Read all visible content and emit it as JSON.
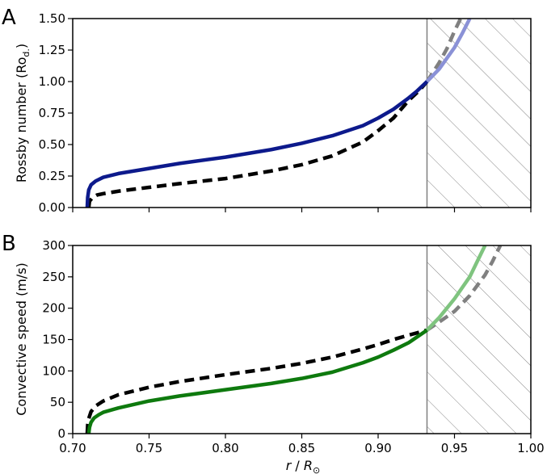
{
  "chart_data": [
    {
      "type": "line",
      "panel_label": "A",
      "xlabel": "",
      "ylabel": "Rossby number (Ro",
      "ylabel_sub": "d.",
      "ylabel_tail": ")",
      "xlim": [
        0.7,
        1.0
      ],
      "ylim": [
        0.0,
        1.5
      ],
      "x_ticks": [
        "0.70",
        "0.75",
        "0.80",
        "0.85",
        "0.90",
        "0.95",
        "1.00"
      ],
      "y_ticks": [
        "0.00",
        "0.25",
        "0.50",
        "0.75",
        "1.00",
        "1.25",
        "1.50"
      ],
      "x_tick_values": [
        0.7,
        0.75,
        0.8,
        0.85,
        0.9,
        0.95,
        1.0
      ],
      "y_tick_values": [
        0.0,
        0.25,
        0.5,
        0.75,
        1.0,
        1.25,
        1.5
      ],
      "hatched_region": [
        0.932,
        1.0
      ],
      "x_tick_labels_visible": false,
      "series": [
        {
          "style": "solid",
          "color": "#0d1a8c",
          "faded_color": "#8a91d6",
          "x": [
            0.7095,
            0.7098,
            0.7105,
            0.712,
            0.715,
            0.72,
            0.73,
            0.75,
            0.77,
            0.8,
            0.83,
            0.85,
            0.87,
            0.89,
            0.9,
            0.91,
            0.92,
            0.925,
            0.932,
            0.94,
            0.95,
            0.955,
            0.96
          ],
          "y": [
            0.0,
            0.08,
            0.14,
            0.18,
            0.21,
            0.24,
            0.27,
            0.31,
            0.35,
            0.4,
            0.46,
            0.51,
            0.57,
            0.65,
            0.71,
            0.78,
            0.87,
            0.92,
            1.0,
            1.1,
            1.27,
            1.38,
            1.5
          ]
        },
        {
          "style": "dashed",
          "color": "#000000",
          "faded_color": "#808080",
          "x": [
            0.7105,
            0.711,
            0.713,
            0.716,
            0.72,
            0.73,
            0.75,
            0.77,
            0.8,
            0.83,
            0.85,
            0.87,
            0.89,
            0.9,
            0.91,
            0.92,
            0.927,
            0.932,
            0.94,
            0.945,
            0.95,
            0.954
          ],
          "y": [
            0.0,
            0.05,
            0.08,
            0.1,
            0.11,
            0.13,
            0.16,
            0.19,
            0.23,
            0.29,
            0.34,
            0.41,
            0.52,
            0.61,
            0.71,
            0.85,
            0.93,
            1.0,
            1.15,
            1.26,
            1.4,
            1.5
          ]
        }
      ]
    },
    {
      "type": "line",
      "panel_label": "B",
      "xlabel_var": "r",
      "xlabel_sep": " / ",
      "xlabel_den": "R",
      "xlabel_sub": "⊙",
      "ylabel": "Convective speed (m/s)",
      "xlim": [
        0.7,
        1.0
      ],
      "ylim": [
        0,
        300
      ],
      "x_ticks": [
        "0.70",
        "0.75",
        "0.80",
        "0.85",
        "0.90",
        "0.95",
        "1.00"
      ],
      "y_ticks": [
        "0",
        "50",
        "100",
        "150",
        "200",
        "250",
        "300"
      ],
      "x_tick_values": [
        0.7,
        0.75,
        0.8,
        0.85,
        0.9,
        0.95,
        1.0
      ],
      "y_tick_values": [
        0,
        50,
        100,
        150,
        200,
        250,
        300
      ],
      "hatched_region": [
        0.932,
        1.0
      ],
      "x_tick_labels_visible": true,
      "series": [
        {
          "style": "solid",
          "color": "#0e7a0e",
          "faded_color": "#7fc47f",
          "x": [
            0.7105,
            0.711,
            0.712,
            0.714,
            0.717,
            0.72,
            0.73,
            0.75,
            0.77,
            0.8,
            0.83,
            0.85,
            0.87,
            0.89,
            0.9,
            0.91,
            0.92,
            0.932,
            0.94,
            0.95,
            0.96,
            0.965,
            0.97
          ],
          "y": [
            0,
            10,
            18,
            25,
            30,
            34,
            41,
            52,
            60,
            70,
            80,
            88,
            98,
            113,
            122,
            133,
            145,
            165,
            185,
            215,
            250,
            275,
            300
          ]
        },
        {
          "style": "dashed",
          "color": "#000000",
          "faded_color": "#808080",
          "x": [
            0.7095,
            0.7098,
            0.7105,
            0.712,
            0.715,
            0.72,
            0.73,
            0.75,
            0.77,
            0.8,
            0.83,
            0.85,
            0.87,
            0.89,
            0.9,
            0.91,
            0.92,
            0.932,
            0.94,
            0.95,
            0.96,
            0.97,
            0.975,
            0.98
          ],
          "y": [
            0,
            14,
            24,
            35,
            44,
            52,
            62,
            74,
            83,
            94,
            104,
            112,
            122,
            135,
            142,
            150,
            157,
            165,
            178,
            195,
            220,
            253,
            275,
            300
          ]
        }
      ]
    }
  ]
}
